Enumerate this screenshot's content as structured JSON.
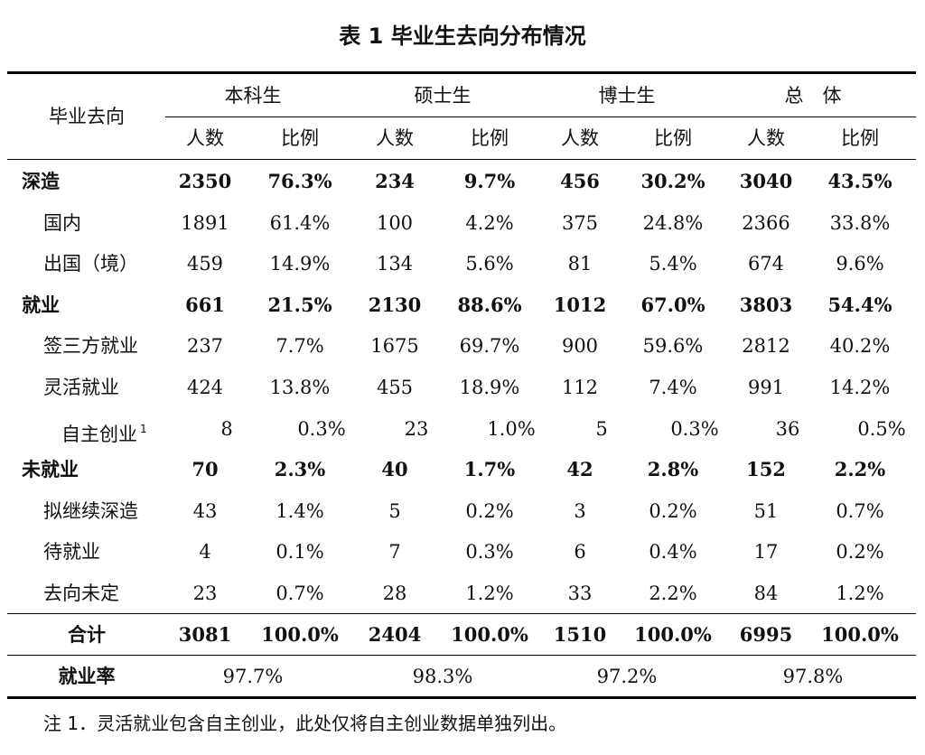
{
  "title": "表 1 毕业生去向分布情况",
  "header": {
    "row_label": "毕业去向",
    "groups": [
      "本科生",
      "硕士生",
      "博士生",
      "总　体"
    ],
    "sub": [
      "人数",
      "比例"
    ]
  },
  "rows": [
    {
      "label": "深造",
      "level": 0,
      "cells": [
        "2350",
        "76.3%",
        "234",
        "9.7%",
        "456",
        "30.2%",
        "3040",
        "43.5%"
      ]
    },
    {
      "label": "国内",
      "level": 1,
      "cells": [
        "1891",
        "61.4%",
        "100",
        "4.2%",
        "375",
        "24.8%",
        "2366",
        "33.8%"
      ]
    },
    {
      "label": "出国（境）",
      "level": 1,
      "cells": [
        "459",
        "14.9%",
        "134",
        "5.6%",
        "81",
        "5.4%",
        "674",
        "9.6%"
      ]
    },
    {
      "label": "就业",
      "level": 0,
      "cells": [
        "661",
        "21.5%",
        "2130",
        "88.6%",
        "1012",
        "67.0%",
        "3803",
        "54.4%"
      ]
    },
    {
      "label": "签三方就业",
      "level": 1,
      "cells": [
        "237",
        "7.7%",
        "1675",
        "69.7%",
        "900",
        "59.6%",
        "2812",
        "40.2%"
      ]
    },
    {
      "label": "灵活就业",
      "level": 1,
      "cells": [
        "424",
        "13.8%",
        "455",
        "18.9%",
        "112",
        "7.4%",
        "991",
        "14.2%"
      ]
    },
    {
      "label": "自主创业",
      "level": 2,
      "sup": "1",
      "cells": [
        "8",
        "0.3%",
        "23",
        "1.0%",
        "5",
        "0.3%",
        "36",
        "0.5%"
      ]
    },
    {
      "label": "未就业",
      "level": 0,
      "cells": [
        "70",
        "2.3%",
        "40",
        "1.7%",
        "42",
        "2.8%",
        "152",
        "2.2%"
      ]
    },
    {
      "label": "拟继续深造",
      "level": 1,
      "cells": [
        "43",
        "1.4%",
        "5",
        "0.2%",
        "3",
        "0.2%",
        "51",
        "0.7%"
      ]
    },
    {
      "label": "待就业",
      "level": 1,
      "cells": [
        "4",
        "0.1%",
        "7",
        "0.3%",
        "6",
        "0.4%",
        "17",
        "0.2%"
      ]
    },
    {
      "label": "去向未定",
      "level": 1,
      "cells": [
        "23",
        "0.7%",
        "28",
        "1.2%",
        "33",
        "2.2%",
        "84",
        "1.2%"
      ]
    }
  ],
  "total": {
    "label": "合计",
    "cells": [
      "3081",
      "100.0%",
      "2404",
      "100.0%",
      "1510",
      "100.0%",
      "6995",
      "100.0%"
    ]
  },
  "rate": {
    "label": "就业率",
    "values": [
      "97.7%",
      "98.3%",
      "97.2%",
      "97.8%"
    ]
  },
  "note": "注 1．灵活就业包含自主创业，此处仅将自主创业数据单独列出。"
}
